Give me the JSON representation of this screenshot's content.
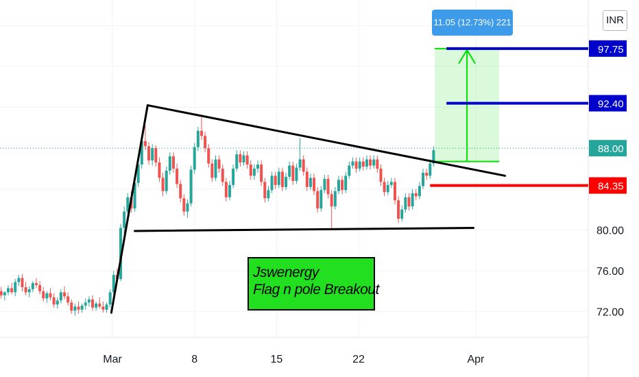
{
  "currency": "INR",
  "measure_label": "11.05 (12.73%) 221",
  "annotation": {
    "line1": "Jswenergy",
    "line2": "Flag n pole Breakout"
  },
  "colors": {
    "up": "#26a69a",
    "down": "#ef5350",
    "target_tag": "#0000cc",
    "stop_tag": "#ff0000",
    "last_tag": "#26a69a",
    "measure": "#00e000",
    "annotation_bg": "#22e01f"
  },
  "chart_data": {
    "type": "candlestick",
    "x_ticks": [
      {
        "label": "Mar",
        "day": 1
      },
      {
        "label": "8",
        "day": 8
      },
      {
        "label": "15",
        "day": 15
      },
      {
        "label": "22",
        "day": 22
      },
      {
        "label": "Apr",
        "day": 32
      }
    ],
    "y_ticks": [
      72.0,
      76.0,
      80.0,
      84.0,
      88.0,
      92.0,
      96.0,
      100.0
    ],
    "ylim": [
      69.5,
      102.5
    ],
    "xlim": [
      -8.6,
      41.6
    ],
    "price_tags": [
      {
        "label": "97.75",
        "value": 97.75,
        "kind": "target"
      },
      {
        "label": "92.40",
        "value": 92.4,
        "kind": "target"
      },
      {
        "label": "88.00",
        "value": 88.0,
        "kind": "last"
      },
      {
        "label": "84.35",
        "value": 84.35,
        "kind": "stop"
      }
    ],
    "axis_labels": [
      {
        "label": "80.00",
        "value": 80.0
      },
      {
        "label": "76.00",
        "value": 76.0
      },
      {
        "label": "72.00",
        "value": 72.0
      }
    ],
    "last_price": 88.0,
    "trendlines": [
      {
        "name": "pole",
        "from": [
          0.9,
          71.9
        ],
        "to": [
          4.0,
          92.2
        ]
      },
      {
        "name": "upper",
        "from": [
          4.0,
          92.2
        ],
        "to": [
          34.5,
          85.3
        ]
      },
      {
        "name": "lower",
        "from": [
          2.9,
          79.9
        ],
        "to": [
          31.8,
          80.2
        ]
      }
    ],
    "levels": [
      {
        "name": "target-1",
        "value": 97.75,
        "from_day": 29.5
      },
      {
        "name": "target-2",
        "value": 92.4,
        "from_day": 29.5
      },
      {
        "name": "stop",
        "value": 84.35,
        "from_day": 28.1
      }
    ],
    "measure": {
      "from_day": 28.5,
      "to_day": 34.0,
      "low": 86.7,
      "high": 97.75,
      "change": 11.05,
      "pct": 12.73,
      "bars": 221
    },
    "candles": [
      [
        -8.5,
        74.0,
        74.4,
        73.3,
        73.6
      ],
      [
        -8.2,
        73.6,
        74.0,
        73.1,
        73.9
      ],
      [
        -7.9,
        73.9,
        74.6,
        73.6,
        74.3
      ],
      [
        -7.6,
        74.3,
        74.8,
        73.7,
        73.9
      ],
      [
        -7.3,
        73.9,
        75.2,
        73.5,
        74.9
      ],
      [
        -7.0,
        74.9,
        75.6,
        74.5,
        75.3
      ],
      [
        -6.7,
        75.3,
        75.7,
        74.0,
        74.4
      ],
      [
        -6.4,
        74.4,
        74.9,
        73.6,
        73.9
      ],
      [
        -6.1,
        73.9,
        74.5,
        73.4,
        74.2
      ],
      [
        -5.8,
        74.2,
        75.0,
        73.9,
        74.8
      ],
      [
        -5.5,
        74.8,
        75.3,
        74.3,
        74.6
      ],
      [
        -5.2,
        74.6,
        75.0,
        73.7,
        74.0
      ],
      [
        -4.9,
        74.0,
        74.4,
        73.0,
        73.3
      ],
      [
        -4.6,
        73.3,
        74.0,
        72.9,
        73.8
      ],
      [
        -4.3,
        73.8,
        74.3,
        73.1,
        73.4
      ],
      [
        -4.0,
        73.4,
        73.8,
        72.4,
        72.7
      ],
      [
        -3.7,
        72.7,
        73.4,
        72.3,
        73.1
      ],
      [
        -3.4,
        73.1,
        74.2,
        72.8,
        73.9
      ],
      [
        -3.1,
        73.9,
        74.5,
        73.2,
        73.5
      ],
      [
        -2.8,
        73.5,
        73.9,
        72.6,
        72.9
      ],
      [
        -2.5,
        72.9,
        73.2,
        71.8,
        72.1
      ],
      [
        -2.2,
        72.1,
        72.8,
        71.6,
        72.5
      ],
      [
        -1.9,
        72.5,
        73.0,
        71.8,
        72.2
      ],
      [
        -1.6,
        72.2,
        72.8,
        71.9,
        72.6
      ],
      [
        -1.3,
        72.6,
        73.3,
        72.2,
        72.9
      ],
      [
        -1.0,
        72.9,
        73.5,
        72.5,
        73.2
      ],
      [
        -0.7,
        73.2,
        73.6,
        72.1,
        72.4
      ],
      [
        -0.4,
        72.4,
        73.0,
        72.1,
        72.8
      ],
      [
        -0.1,
        72.8,
        73.4,
        72.3,
        72.5
      ],
      [
        0.2,
        72.5,
        73.0,
        71.9,
        72.2
      ],
      [
        0.5,
        72.2,
        72.9,
        71.9,
        72.7
      ],
      [
        0.8,
        72.7,
        74.2,
        72.4,
        73.9
      ],
      [
        1.1,
        73.9,
        76.0,
        73.6,
        75.6
      ],
      [
        1.4,
        75.6,
        76.2,
        74.9,
        75.2
      ],
      [
        1.7,
        75.2,
        80.6,
        75.0,
        80.2
      ],
      [
        2.0,
        80.2,
        82.3,
        79.6,
        81.8
      ],
      [
        2.3,
        81.8,
        83.6,
        81.3,
        83.2
      ],
      [
        2.6,
        83.2,
        83.8,
        81.7,
        82.1
      ],
      [
        2.9,
        82.1,
        84.9,
        81.8,
        84.6
      ],
      [
        3.2,
        84.6,
        86.9,
        84.2,
        86.4
      ],
      [
        3.5,
        86.4,
        89.2,
        86.0,
        88.7
      ],
      [
        3.8,
        88.7,
        90.2,
        87.8,
        88.2
      ],
      [
        4.1,
        88.2,
        88.6,
        86.4,
        86.8
      ],
      [
        4.4,
        86.8,
        88.4,
        86.3,
        88.0
      ],
      [
        4.7,
        88.0,
        88.3,
        86.2,
        86.6
      ],
      [
        5.0,
        86.6,
        87.1,
        84.7,
        85.1
      ],
      [
        5.3,
        85.1,
        85.6,
        83.3,
        83.8
      ],
      [
        5.6,
        83.8,
        86.2,
        83.5,
        85.8
      ],
      [
        5.9,
        85.8,
        87.6,
        85.4,
        87.2
      ],
      [
        6.2,
        87.2,
        87.6,
        85.6,
        86.0
      ],
      [
        6.5,
        86.0,
        86.5,
        84.1,
        84.5
      ],
      [
        6.8,
        84.5,
        84.9,
        82.7,
        83.1
      ],
      [
        7.1,
        83.1,
        83.5,
        81.4,
        81.8
      ],
      [
        7.4,
        81.8,
        83.0,
        81.2,
        82.6
      ],
      [
        7.7,
        82.6,
        86.3,
        82.3,
        85.9
      ],
      [
        8.0,
        85.9,
        88.5,
        85.5,
        88.1
      ],
      [
        8.3,
        88.1,
        90.1,
        87.7,
        89.7
      ],
      [
        8.6,
        89.7,
        91.0,
        88.8,
        89.2
      ],
      [
        8.9,
        89.2,
        89.6,
        87.6,
        88.0
      ],
      [
        9.2,
        88.0,
        88.4,
        86.1,
        86.5
      ],
      [
        9.5,
        86.5,
        86.9,
        84.7,
        85.1
      ],
      [
        9.8,
        85.1,
        87.3,
        84.8,
        86.9
      ],
      [
        10.1,
        86.9,
        87.3,
        85.6,
        86.0
      ],
      [
        10.4,
        86.0,
        86.4,
        84.3,
        84.7
      ],
      [
        10.7,
        84.7,
        85.1,
        82.8,
        83.2
      ],
      [
        11.0,
        83.2,
        84.8,
        82.9,
        84.4
      ],
      [
        11.3,
        84.4,
        86.4,
        84.1,
        86.0
      ],
      [
        11.6,
        86.0,
        87.8,
        85.7,
        87.4
      ],
      [
        11.9,
        87.4,
        87.8,
        86.2,
        86.6
      ],
      [
        12.2,
        86.6,
        87.7,
        86.3,
        87.3
      ],
      [
        12.5,
        87.3,
        87.7,
        86.0,
        86.4
      ],
      [
        12.8,
        86.4,
        86.8,
        84.9,
        85.3
      ],
      [
        13.1,
        85.3,
        86.4,
        84.9,
        86.0
      ],
      [
        13.4,
        86.0,
        86.8,
        85.6,
        86.4
      ],
      [
        13.7,
        86.4,
        86.8,
        84.3,
        84.7
      ],
      [
        14.0,
        84.7,
        85.1,
        82.7,
        83.1
      ],
      [
        14.3,
        83.1,
        84.3,
        82.8,
        83.9
      ],
      [
        14.6,
        83.9,
        85.7,
        83.6,
        85.3
      ],
      [
        14.9,
        85.3,
        85.7,
        84.0,
        84.4
      ],
      [
        15.2,
        84.4,
        86.1,
        84.1,
        85.7
      ],
      [
        15.5,
        85.7,
        86.1,
        83.8,
        84.2
      ],
      [
        15.8,
        84.2,
        85.6,
        83.9,
        85.2
      ],
      [
        16.1,
        85.2,
        86.7,
        84.9,
        86.3
      ],
      [
        16.4,
        86.3,
        86.7,
        84.4,
        84.8
      ],
      [
        16.7,
        84.8,
        86.5,
        84.5,
        86.1
      ],
      [
        17.0,
        86.1,
        89.0,
        85.8,
        86.9
      ],
      [
        17.3,
        86.9,
        87.3,
        85.3,
        85.7
      ],
      [
        17.6,
        85.7,
        86.1,
        83.8,
        84.2
      ],
      [
        17.9,
        84.2,
        85.5,
        83.9,
        85.1
      ],
      [
        18.2,
        85.1,
        85.5,
        83.4,
        83.8
      ],
      [
        18.5,
        83.8,
        84.2,
        81.7,
        82.1
      ],
      [
        18.8,
        82.1,
        84.3,
        81.8,
        83.9
      ],
      [
        19.1,
        83.9,
        85.4,
        83.6,
        85.0
      ],
      [
        19.4,
        85.0,
        85.4,
        83.1,
        83.5
      ],
      [
        19.7,
        83.5,
        83.9,
        80.1,
        82.3
      ],
      [
        20.0,
        82.3,
        84.2,
        82.0,
        83.8
      ],
      [
        20.3,
        83.8,
        85.3,
        83.5,
        84.9
      ],
      [
        20.6,
        84.9,
        85.3,
        83.5,
        83.9
      ],
      [
        20.9,
        83.9,
        85.7,
        83.6,
        85.3
      ],
      [
        21.2,
        85.3,
        86.7,
        85.0,
        86.3
      ],
      [
        21.5,
        86.3,
        87.1,
        86.0,
        86.7
      ],
      [
        21.8,
        86.7,
        87.1,
        85.6,
        86.0
      ],
      [
        22.1,
        86.0,
        87.1,
        85.7,
        86.7
      ],
      [
        22.4,
        86.7,
        87.1,
        85.8,
        86.2
      ],
      [
        22.7,
        86.2,
        87.3,
        85.9,
        86.9
      ],
      [
        23.0,
        86.9,
        87.3,
        85.9,
        86.3
      ],
      [
        23.3,
        86.3,
        87.3,
        86.0,
        86.9
      ],
      [
        23.6,
        86.9,
        87.3,
        85.6,
        86.0
      ],
      [
        23.9,
        86.0,
        86.4,
        84.3,
        84.7
      ],
      [
        24.2,
        84.7,
        85.1,
        83.3,
        83.7
      ],
      [
        24.5,
        83.7,
        84.8,
        83.4,
        84.4
      ],
      [
        24.8,
        84.4,
        85.1,
        84.1,
        84.7
      ],
      [
        25.1,
        84.7,
        85.1,
        82.5,
        82.9
      ],
      [
        25.4,
        82.9,
        83.3,
        80.7,
        81.1
      ],
      [
        25.7,
        81.1,
        82.4,
        80.8,
        82.0
      ],
      [
        26.0,
        82.0,
        83.6,
        81.7,
        83.2
      ],
      [
        26.3,
        83.2,
        83.6,
        81.9,
        82.3
      ],
      [
        26.6,
        82.3,
        84.0,
        82.0,
        83.6
      ],
      [
        26.9,
        83.6,
        84.0,
        82.9,
        83.3
      ],
      [
        27.2,
        83.3,
        84.7,
        83.0,
        84.3
      ],
      [
        27.5,
        84.3,
        86.0,
        84.0,
        85.6
      ],
      [
        27.8,
        85.6,
        86.0,
        84.9,
        85.3
      ],
      [
        28.1,
        85.3,
        86.9,
        85.0,
        86.5
      ],
      [
        28.4,
        86.5,
        88.2,
        86.2,
        87.8
      ]
    ]
  }
}
